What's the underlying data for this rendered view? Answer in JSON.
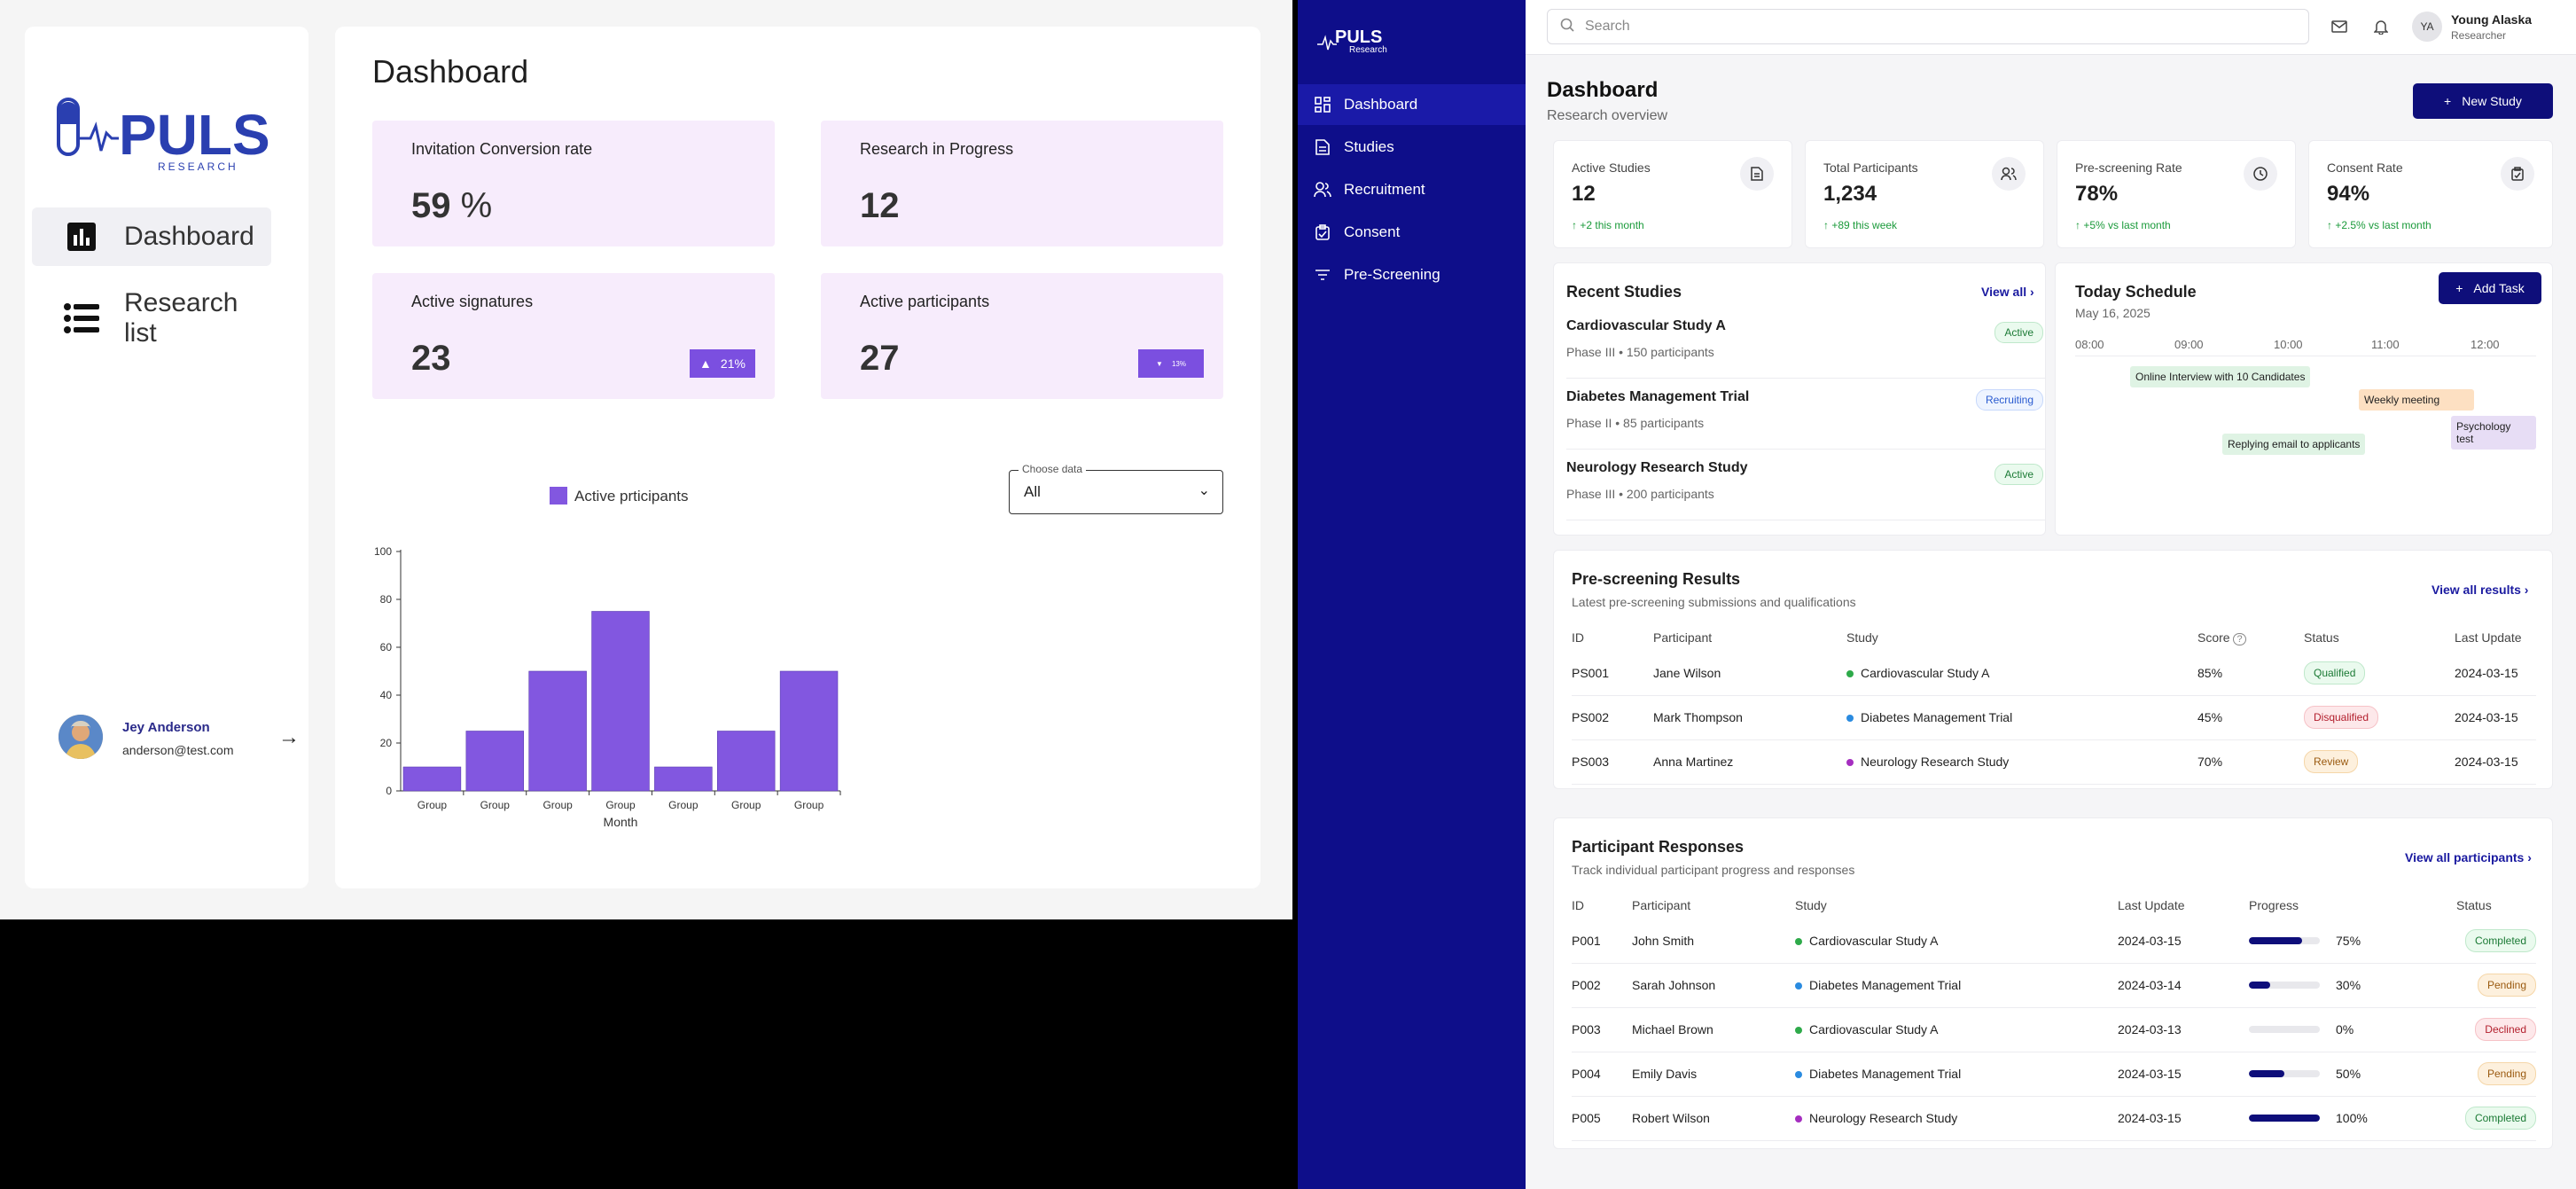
{
  "left": {
    "logo": {
      "brand": "PULS",
      "tagline": "RESEARCH"
    },
    "nav": [
      {
        "label": "Dashboard",
        "active": true
      },
      {
        "label": "Research list",
        "active": false
      }
    ],
    "user": {
      "name": "Jey Anderson",
      "email": "anderson@test.com"
    },
    "title": "Dashboard",
    "cards": [
      {
        "title": "Invitation Conversion rate",
        "value": "59",
        "unit": "%"
      },
      {
        "title": "Research in Progress",
        "value": "12"
      },
      {
        "title": "Active signatures",
        "value": "23",
        "badge": "21%"
      },
      {
        "title": "Active participants",
        "value": "27",
        "badge": "13%"
      }
    ],
    "select": {
      "label": "Choose data",
      "value": "All"
    },
    "chart_data": {
      "type": "bar",
      "categories": [
        "Group",
        "Group",
        "Group",
        "Group",
        "Group",
        "Group",
        "Group"
      ],
      "series": [
        {
          "name": "Active prticipants",
          "values": [
            10,
            25,
            50,
            75,
            10,
            25,
            50
          ]
        }
      ],
      "xlabel": "Month",
      "ylabel": "",
      "ylim": [
        0,
        100
      ],
      "yticks": [
        0,
        20,
        40,
        60,
        80,
        100
      ],
      "legend": "top",
      "color": "#8257e0"
    }
  },
  "right": {
    "logo": {
      "brand": "PULS",
      "tagline": "Research"
    },
    "nav": [
      {
        "label": "Dashboard",
        "active": true
      },
      {
        "label": "Studies"
      },
      {
        "label": "Recruitment"
      },
      {
        "label": "Consent"
      },
      {
        "label": "Pre-Screening"
      }
    ],
    "search_placeholder": "Search",
    "user": {
      "initials": "YA",
      "name": "Young Alaska",
      "role": "Researcher"
    },
    "title": "Dashboard",
    "subtitle": "Research overview",
    "new_study": "New Study",
    "stats": [
      {
        "title": "Active Studies",
        "value": "12",
        "delta": "+2 this month"
      },
      {
        "title": "Total Participants",
        "value": "1,234",
        "delta": "+89 this week"
      },
      {
        "title": "Pre-screening Rate",
        "value": "78%",
        "delta": "+5% vs last month"
      },
      {
        "title": "Consent Rate",
        "value": "94%",
        "delta": "+2.5% vs last month"
      }
    ],
    "recent": {
      "title": "Recent Studies",
      "link": "View all",
      "items": [
        {
          "name": "Cardiovascular Study A",
          "meta": "Phase III • 150 participants",
          "status": "Active"
        },
        {
          "name": "Diabetes Management Trial",
          "meta": "Phase II • 85 participants",
          "status": "Recruiting"
        },
        {
          "name": "Neurology Research Study",
          "meta": "Phase III • 200 participants",
          "status": "Active"
        }
      ]
    },
    "schedule": {
      "title": "Today Schedule",
      "date": "May 16, 2025",
      "button": "Add Task",
      "times": [
        "08:00",
        "09:00",
        "10:00",
        "11:00",
        "12:00"
      ],
      "events": [
        {
          "label": "Online Interview with 10 Candidates",
          "color": "#dff3e4"
        },
        {
          "label": "Weekly meeting",
          "color": "#fde0c2"
        },
        {
          "label": "Psychology test",
          "color": "#e7ddf5"
        },
        {
          "label": "Replying email to applicants",
          "color": "#dff3e4"
        }
      ]
    },
    "prescreen": {
      "title": "Pre-screening Results",
      "subtitle": "Latest pre-screening submissions and qualifications",
      "link": "View all results",
      "headers": [
        "ID",
        "Participant",
        "Study",
        "Score",
        "Status",
        "Last Update"
      ],
      "rows": [
        {
          "id": "PS001",
          "name": "Jane Wilson",
          "study": "Cardiovascular Study A",
          "dot": "#2eaa4a",
          "score": "85%",
          "status": "Qualified",
          "date": "2024-03-15"
        },
        {
          "id": "PS002",
          "name": "Mark Thompson",
          "study": "Diabetes Management Trial",
          "dot": "#2a8be0",
          "score": "45%",
          "status": "Disqualified",
          "date": "2024-03-15"
        },
        {
          "id": "PS003",
          "name": "Anna Martinez",
          "study": "Neurology Research Study",
          "dot": "#a52ec0",
          "score": "70%",
          "status": "Review",
          "date": "2024-03-15"
        }
      ]
    },
    "responses": {
      "title": "Participant Responses",
      "subtitle": "Track individual participant progress and responses",
      "link": "View all participants",
      "headers": [
        "ID",
        "Participant",
        "Study",
        "Last Update",
        "Progress",
        "Status"
      ],
      "rows": [
        {
          "id": "P001",
          "name": "John Smith",
          "study": "Cardiovascular Study A",
          "dot": "#2eaa4a",
          "date": "2024-03-15",
          "progress": 75,
          "progress_label": "75%",
          "status": "Completed"
        },
        {
          "id": "P002",
          "name": "Sarah Johnson",
          "study": "Diabetes Management Trial",
          "dot": "#2a8be0",
          "date": "2024-03-14",
          "progress": 30,
          "progress_label": "30%",
          "status": "Pending"
        },
        {
          "id": "P003",
          "name": "Michael Brown",
          "study": "Cardiovascular Study A",
          "dot": "#2eaa4a",
          "date": "2024-03-13",
          "progress": 0,
          "progress_label": "0%",
          "status": "Declined"
        },
        {
          "id": "P004",
          "name": "Emily Davis",
          "study": "Diabetes Management Trial",
          "dot": "#2a8be0",
          "date": "2024-03-15",
          "progress": 50,
          "progress_label": "50%",
          "status": "Pending"
        },
        {
          "id": "P005",
          "name": "Robert Wilson",
          "study": "Neurology Research Study",
          "dot": "#a52ec0",
          "date": "2024-03-15",
          "progress": 100,
          "progress_label": "100%",
          "status": "Completed"
        }
      ]
    }
  }
}
